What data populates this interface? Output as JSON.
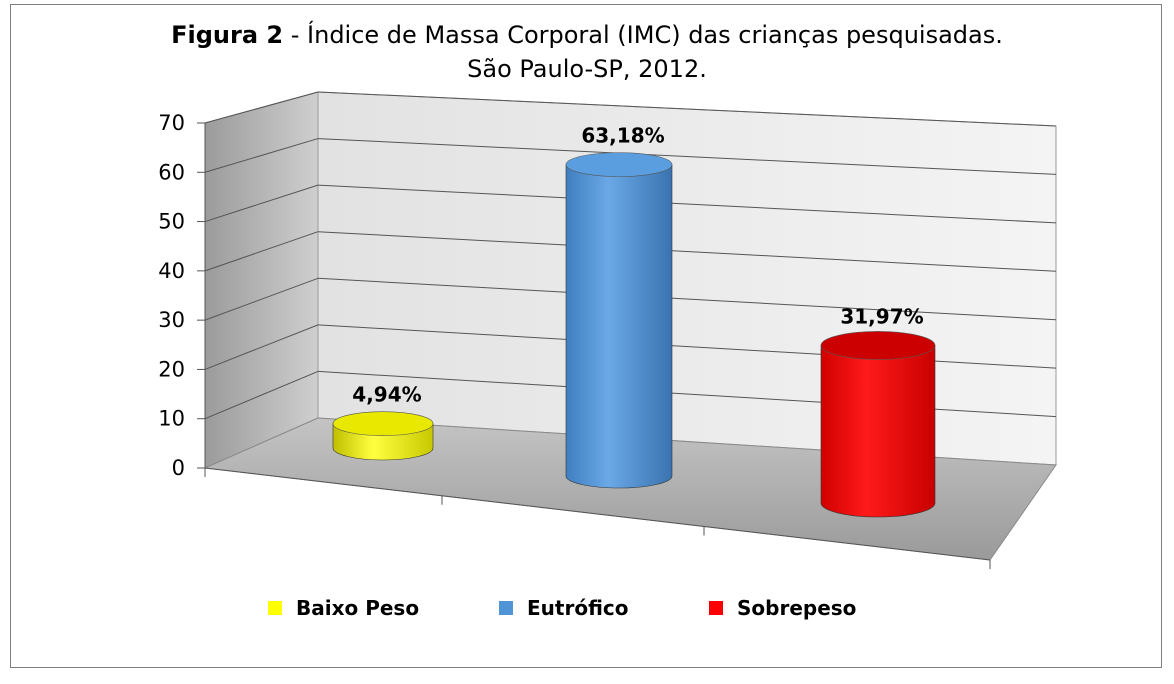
{
  "title": {
    "bold_part": "Figura 2",
    "rest_line1": " - Índice de Massa Corporal (IMC) das crianças pesquisadas.",
    "line2": "São Paulo-SP, 2012."
  },
  "chart_data": {
    "type": "bar",
    "style": "3d-cylinder",
    "title": "Figura 2 - Índice de Massa Corporal (IMC) das crianças pesquisadas. São Paulo-SP, 2012.",
    "categories": [
      "Baixo Peso",
      "Eutrófico",
      "Sobrepeso"
    ],
    "values": [
      4.94,
      63.18,
      31.97
    ],
    "data_labels": [
      "4,94%",
      "63,18%",
      "31,97%"
    ],
    "colors": [
      "#ffff00",
      "#4f94d6",
      "#ff0000"
    ],
    "ylim": [
      0,
      70
    ],
    "yticks": [
      "0",
      "10",
      "20",
      "30",
      "40",
      "50",
      "60",
      "70"
    ],
    "grid": true,
    "legend_position": "bottom"
  }
}
